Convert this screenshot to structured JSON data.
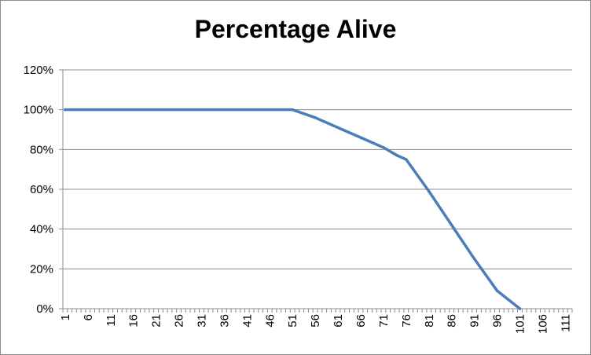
{
  "chart_data": {
    "type": "line",
    "title": "Percentage Alive",
    "xlabel": "",
    "ylabel": "",
    "ylim": [
      0,
      1.2
    ],
    "xlim": [
      1,
      112
    ],
    "yticks": [
      "0%",
      "20%",
      "40%",
      "60%",
      "80%",
      "100%",
      "120%"
    ],
    "xticks": [
      "1",
      "6",
      "11",
      "16",
      "21",
      "26",
      "31",
      "36",
      "41",
      "46",
      "51",
      "56",
      "61",
      "66",
      "71",
      "76",
      "81",
      "86",
      "91",
      "96",
      "101",
      "106",
      "111"
    ],
    "grid": "horizontal",
    "legend": "none",
    "line_color": "#4a7ebb",
    "series": [
      {
        "x": [
          1,
          51,
          56,
          61,
          66,
          71,
          74,
          76,
          81,
          86,
          91,
          96,
          101
        ],
        "values": [
          1.0,
          1.0,
          0.96,
          0.91,
          0.86,
          0.81,
          0.77,
          0.75,
          0.59,
          0.42,
          0.25,
          0.09,
          0.0
        ]
      }
    ]
  }
}
